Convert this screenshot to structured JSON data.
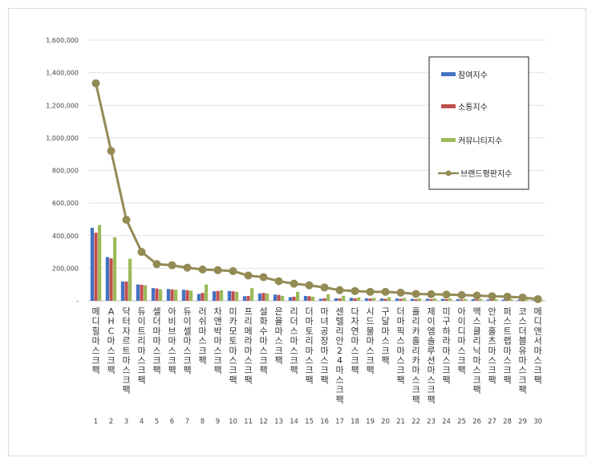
{
  "chart_data": {
    "type": "bar",
    "title": "",
    "xlabel": "",
    "ylabel": "",
    "ylim": [
      0,
      1600000
    ],
    "yticks": [
      "-",
      "200,000",
      "400,000",
      "600,000",
      "800,000",
      "1,000,000",
      "1,200,000",
      "1,400,000",
      "1,600,000"
    ],
    "grid": true,
    "legend_position": "right",
    "ranks": [
      "1",
      "2",
      "3",
      "4",
      "5",
      "6",
      "7",
      "8",
      "9",
      "10",
      "11",
      "12",
      "13",
      "14",
      "15",
      "16",
      "17",
      "18",
      "19",
      "20",
      "21",
      "22",
      "23",
      "24",
      "25",
      "26",
      "27",
      "28",
      "29",
      "30"
    ],
    "categories": [
      "메디힐마스크팩",
      "AHC마스크팩",
      "닥터자르트마스크팩",
      "듀이트리마스크팩",
      "셀더마마스크팩",
      "아비브마스크팩",
      "듀이셀마스크팩",
      "러쉬마스크팩",
      "차앤박마스크팩",
      "미카모토마스크팩",
      "프리메라마스크팩",
      "설화수마스크팩",
      "은율마스크팩",
      "리더스마스크팩",
      "더마토리마스크팩",
      "마녀공장마스크팩",
      "센텔리안24마스크팩",
      "다자연마스크팩",
      "시드물마스크팩",
      "구달마스크팩",
      "더마픽스마스크팩",
      "홀리카홀리카마스크팩",
      "제이엠솔루션마스크팩",
      "미구하라마스크팩",
      "아이디마스크팩",
      "맥스클리닉마스크팩",
      "안나홀츠마스크팩",
      "퍼스트랩마스크팩",
      "코스더블유마스크팩",
      "메디앤서마스크팩"
    ],
    "series": [
      {
        "name": "참여지수",
        "type": "bar",
        "color": "#4472c4",
        "values": [
          448000,
          268000,
          118000,
          100000,
          78000,
          72000,
          68000,
          42000,
          58000,
          60000,
          28000,
          45000,
          38000,
          22000,
          30000,
          12000,
          15000,
          18000,
          15000,
          14000,
          14000,
          12000,
          12000,
          12000,
          10000,
          10000,
          8000,
          8000,
          6000,
          4000
        ]
      },
      {
        "name": "소통지수",
        "type": "bar",
        "color": "#c0504d",
        "values": [
          418000,
          260000,
          118000,
          98000,
          75000,
          70000,
          65000,
          48000,
          60000,
          58000,
          30000,
          48000,
          36000,
          25000,
          28000,
          15000,
          14000,
          15000,
          14000,
          12000,
          12000,
          10000,
          10000,
          10000,
          8000,
          8000,
          7000,
          7000,
          5000,
          3000
        ]
      },
      {
        "name": "커뮤니티지수",
        "type": "bar",
        "color": "#9bbb59",
        "values": [
          465000,
          390000,
          258000,
          95000,
          70000,
          68000,
          62000,
          100000,
          65000,
          55000,
          78000,
          45000,
          30000,
          55000,
          25000,
          40000,
          30000,
          20000,
          18000,
          22000,
          18000,
          15000,
          15000,
          15000,
          12000,
          12000,
          10000,
          10000,
          8000,
          5000
        ]
      },
      {
        "name": "브랜드평판지수",
        "type": "line",
        "color": "#948a54",
        "values": [
          1335000,
          920000,
          497000,
          300000,
          225000,
          218000,
          203000,
          192000,
          188000,
          182000,
          155000,
          145000,
          120000,
          105000,
          95000,
          82000,
          65000,
          60000,
          55000,
          55000,
          50000,
          42000,
          40000,
          38000,
          35000,
          32000,
          28000,
          25000,
          20000,
          10000
        ]
      }
    ]
  }
}
